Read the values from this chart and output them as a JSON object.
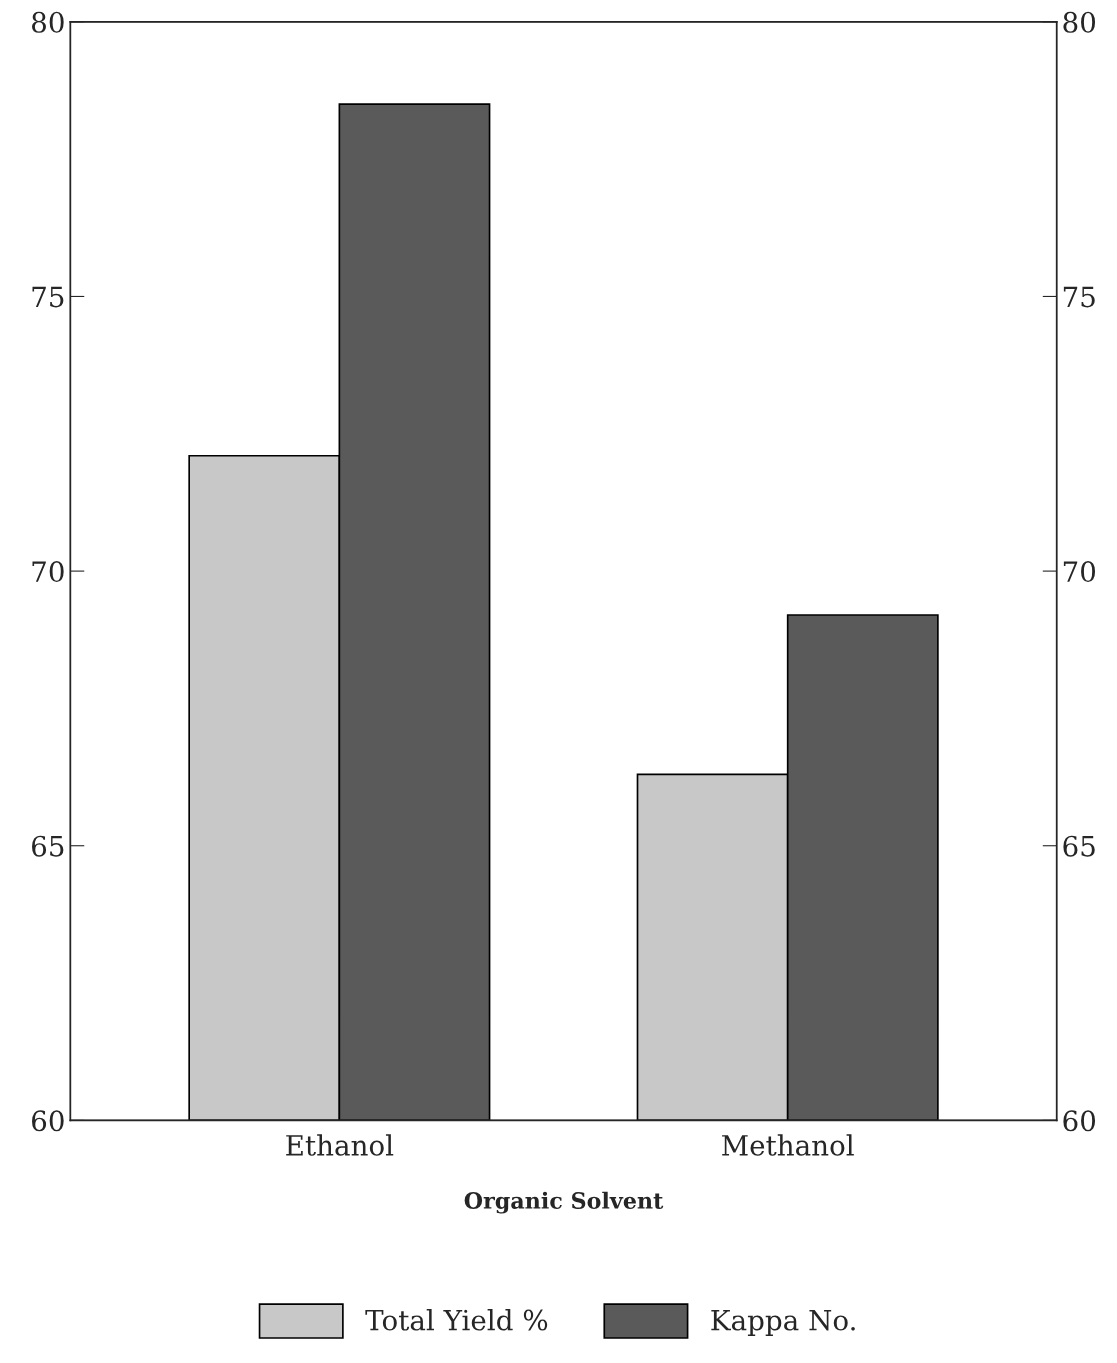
{
  "chart_data": {
    "type": "bar",
    "xlabel": "Organic Solvent",
    "categories": [
      "Ethanol",
      "Methanol"
    ],
    "series": [
      {
        "name": "Total Yield %",
        "color": "#c8c8c8",
        "values": [
          72.1,
          66.3
        ]
      },
      {
        "name": "Kappa No.",
        "color": "#5a5a5a",
        "values": [
          78.5,
          69.2
        ]
      }
    ],
    "ylim": [
      60,
      80
    ],
    "yticks": [
      60,
      65,
      70,
      75,
      80
    ],
    "y2lim": [
      60,
      80
    ],
    "y2ticks": [
      60,
      65,
      70,
      75,
      80
    ],
    "grid": false,
    "legend": "bottom"
  }
}
